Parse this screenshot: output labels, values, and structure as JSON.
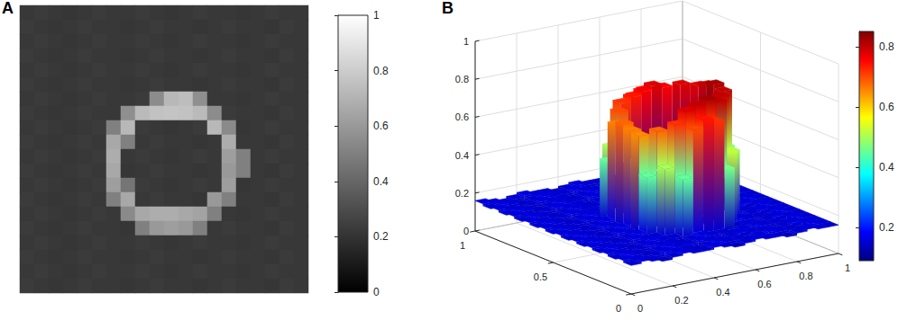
{
  "chart_data": [
    {
      "type": "heatmap",
      "title": "A",
      "tick_labels": false,
      "colorbar": {
        "range": [
          0,
          1
        ],
        "ticks": [
          0,
          0.2,
          0.4,
          0.6,
          0.8,
          1
        ]
      },
      "cells": [
        [
          0.22,
          0.23,
          0.22,
          0.21,
          0.22,
          0.23,
          0.22,
          0.22,
          0.23,
          0.22,
          0.21,
          0.22,
          0.23,
          0.22,
          0.22,
          0.21,
          0.22,
          0.23,
          0.22,
          0.22
        ],
        [
          0.23,
          0.22,
          0.21,
          0.22,
          0.23,
          0.22,
          0.22,
          0.21,
          0.22,
          0.23,
          0.22,
          0.22,
          0.21,
          0.22,
          0.23,
          0.22,
          0.22,
          0.21,
          0.23,
          0.22
        ],
        [
          0.22,
          0.23,
          0.22,
          0.21,
          0.22,
          0.23,
          0.22,
          0.22,
          0.23,
          0.22,
          0.21,
          0.22,
          0.23,
          0.22,
          0.22,
          0.21,
          0.22,
          0.23,
          0.22,
          0.22
        ],
        [
          0.23,
          0.22,
          0.21,
          0.22,
          0.23,
          0.22,
          0.22,
          0.21,
          0.22,
          0.23,
          0.22,
          0.22,
          0.21,
          0.22,
          0.23,
          0.22,
          0.22,
          0.21,
          0.23,
          0.22
        ],
        [
          0.22,
          0.23,
          0.22,
          0.21,
          0.22,
          0.23,
          0.22,
          0.22,
          0.23,
          0.22,
          0.21,
          0.22,
          0.23,
          0.22,
          0.22,
          0.21,
          0.22,
          0.23,
          0.22,
          0.22
        ],
        [
          0.23,
          0.22,
          0.21,
          0.22,
          0.23,
          0.22,
          0.22,
          0.21,
          0.22,
          0.23,
          0.22,
          0.22,
          0.21,
          0.22,
          0.23,
          0.22,
          0.22,
          0.21,
          0.23,
          0.22
        ],
        [
          0.22,
          0.23,
          0.22,
          0.21,
          0.22,
          0.23,
          0.22,
          0.22,
          0.23,
          0.55,
          0.72,
          0.74,
          0.56,
          0.22,
          0.22,
          0.21,
          0.22,
          0.23,
          0.22,
          0.22
        ],
        [
          0.23,
          0.22,
          0.21,
          0.22,
          0.23,
          0.22,
          0.22,
          0.56,
          0.73,
          0.76,
          0.77,
          0.76,
          0.73,
          0.55,
          0.23,
          0.22,
          0.22,
          0.21,
          0.23,
          0.22
        ],
        [
          0.22,
          0.23,
          0.22,
          0.21,
          0.22,
          0.23,
          0.5,
          0.72,
          0.23,
          0.22,
          0.21,
          0.22,
          0.23,
          0.72,
          0.54,
          0.21,
          0.22,
          0.23,
          0.22,
          0.22
        ],
        [
          0.23,
          0.22,
          0.21,
          0.22,
          0.23,
          0.22,
          0.66,
          0.5,
          0.22,
          0.23,
          0.22,
          0.22,
          0.21,
          0.22,
          0.68,
          0.22,
          0.22,
          0.21,
          0.23,
          0.22
        ],
        [
          0.22,
          0.23,
          0.22,
          0.21,
          0.22,
          0.23,
          0.68,
          0.22,
          0.23,
          0.22,
          0.21,
          0.22,
          0.23,
          0.22,
          0.62,
          0.5,
          0.22,
          0.23,
          0.22,
          0.22
        ],
        [
          0.23,
          0.22,
          0.21,
          0.22,
          0.23,
          0.22,
          0.66,
          0.21,
          0.22,
          0.23,
          0.22,
          0.22,
          0.21,
          0.22,
          0.6,
          0.5,
          0.22,
          0.21,
          0.23,
          0.22
        ],
        [
          0.22,
          0.23,
          0.22,
          0.21,
          0.22,
          0.23,
          0.62,
          0.46,
          0.23,
          0.22,
          0.21,
          0.22,
          0.23,
          0.22,
          0.62,
          0.21,
          0.22,
          0.23,
          0.22,
          0.22
        ],
        [
          0.23,
          0.22,
          0.21,
          0.22,
          0.23,
          0.22,
          0.5,
          0.66,
          0.22,
          0.23,
          0.22,
          0.22,
          0.21,
          0.6,
          0.5,
          0.22,
          0.22,
          0.21,
          0.23,
          0.22
        ],
        [
          0.22,
          0.23,
          0.22,
          0.21,
          0.22,
          0.23,
          0.22,
          0.54,
          0.66,
          0.68,
          0.68,
          0.66,
          0.64,
          0.5,
          0.22,
          0.21,
          0.22,
          0.23,
          0.22,
          0.22
        ],
        [
          0.23,
          0.22,
          0.21,
          0.22,
          0.23,
          0.22,
          0.22,
          0.21,
          0.5,
          0.6,
          0.62,
          0.6,
          0.5,
          0.22,
          0.23,
          0.22,
          0.22,
          0.21,
          0.23,
          0.22
        ],
        [
          0.22,
          0.23,
          0.22,
          0.21,
          0.22,
          0.23,
          0.22,
          0.22,
          0.23,
          0.22,
          0.21,
          0.22,
          0.23,
          0.22,
          0.22,
          0.21,
          0.22,
          0.23,
          0.22,
          0.22
        ],
        [
          0.23,
          0.22,
          0.21,
          0.22,
          0.23,
          0.22,
          0.22,
          0.21,
          0.22,
          0.23,
          0.22,
          0.22,
          0.21,
          0.22,
          0.23,
          0.22,
          0.22,
          0.21,
          0.23,
          0.22
        ],
        [
          0.22,
          0.23,
          0.22,
          0.21,
          0.22,
          0.23,
          0.22,
          0.22,
          0.23,
          0.22,
          0.21,
          0.22,
          0.23,
          0.22,
          0.22,
          0.21,
          0.22,
          0.23,
          0.22,
          0.22
        ],
        [
          0.23,
          0.22,
          0.21,
          0.22,
          0.23,
          0.22,
          0.22,
          0.21,
          0.22,
          0.23,
          0.22,
          0.22,
          0.21,
          0.22,
          0.23,
          0.22,
          0.22,
          0.21,
          0.23,
          0.22
        ]
      ]
    },
    {
      "type": "surface",
      "title": "B",
      "grid": true,
      "xlim": [
        0,
        1
      ],
      "xticks": [
        0,
        0.2,
        0.4,
        0.6,
        0.8,
        1
      ],
      "ylim": [
        0,
        1
      ],
      "yticks": [
        0,
        0.5,
        1
      ],
      "zlim": [
        0,
        1
      ],
      "zticks": [
        0,
        0.2,
        0.4,
        0.6,
        0.8,
        1
      ],
      "colorbar": {
        "range": [
          0.09,
          0.85
        ],
        "ticks": [
          0.2,
          0.4,
          0.6,
          0.8
        ]
      },
      "z": [
        [
          0.15,
          0.16,
          0.15,
          0.14,
          0.15,
          0.16,
          0.15,
          0.15,
          0.16,
          0.15,
          0.14,
          0.15,
          0.16,
          0.15,
          0.15,
          0.14,
          0.15,
          0.16,
          0.15,
          0.15
        ],
        [
          0.16,
          0.15,
          0.14,
          0.15,
          0.16,
          0.15,
          0.15,
          0.14,
          0.15,
          0.16,
          0.15,
          0.15,
          0.14,
          0.15,
          0.16,
          0.15,
          0.15,
          0.14,
          0.16,
          0.15
        ],
        [
          0.15,
          0.16,
          0.15,
          0.14,
          0.15,
          0.16,
          0.15,
          0.15,
          0.16,
          0.15,
          0.14,
          0.15,
          0.16,
          0.15,
          0.15,
          0.14,
          0.15,
          0.16,
          0.15,
          0.15
        ],
        [
          0.16,
          0.15,
          0.14,
          0.15,
          0.16,
          0.15,
          0.15,
          0.14,
          0.15,
          0.16,
          0.15,
          0.15,
          0.14,
          0.15,
          0.16,
          0.15,
          0.15,
          0.14,
          0.16,
          0.15
        ],
        [
          0.15,
          0.16,
          0.15,
          0.14,
          0.15,
          0.16,
          0.15,
          0.15,
          0.45,
          0.7,
          0.74,
          0.72,
          0.46,
          0.15,
          0.15,
          0.14,
          0.15,
          0.16,
          0.15,
          0.15
        ],
        [
          0.16,
          0.15,
          0.14,
          0.15,
          0.16,
          0.15,
          0.15,
          0.5,
          0.72,
          0.78,
          0.8,
          0.82,
          0.8,
          0.52,
          0.16,
          0.15,
          0.15,
          0.14,
          0.16,
          0.15
        ],
        [
          0.15,
          0.16,
          0.15,
          0.14,
          0.15,
          0.16,
          0.45,
          0.68,
          0.16,
          0.15,
          0.14,
          0.15,
          0.16,
          0.8,
          0.5,
          0.14,
          0.15,
          0.16,
          0.15,
          0.15
        ],
        [
          0.16,
          0.15,
          0.14,
          0.15,
          0.16,
          0.15,
          0.65,
          0.45,
          0.15,
          0.16,
          0.15,
          0.15,
          0.14,
          0.15,
          0.8,
          0.15,
          0.15,
          0.14,
          0.16,
          0.15
        ],
        [
          0.15,
          0.16,
          0.15,
          0.14,
          0.15,
          0.16,
          0.66,
          0.15,
          0.16,
          0.15,
          0.14,
          0.15,
          0.16,
          0.15,
          0.82,
          0.48,
          0.15,
          0.16,
          0.15,
          0.15
        ],
        [
          0.16,
          0.15,
          0.14,
          0.15,
          0.16,
          0.15,
          0.68,
          0.14,
          0.15,
          0.16,
          0.15,
          0.15,
          0.14,
          0.15,
          0.8,
          0.45,
          0.15,
          0.14,
          0.16,
          0.15
        ],
        [
          0.15,
          0.16,
          0.15,
          0.14,
          0.15,
          0.16,
          0.66,
          0.45,
          0.16,
          0.15,
          0.14,
          0.15,
          0.16,
          0.15,
          0.78,
          0.14,
          0.15,
          0.16,
          0.15,
          0.15
        ],
        [
          0.16,
          0.15,
          0.14,
          0.15,
          0.16,
          0.15,
          0.45,
          0.7,
          0.15,
          0.16,
          0.15,
          0.15,
          0.14,
          0.78,
          0.5,
          0.15,
          0.15,
          0.14,
          0.16,
          0.15
        ],
        [
          0.15,
          0.16,
          0.15,
          0.14,
          0.15,
          0.16,
          0.15,
          0.5,
          0.72,
          0.74,
          0.76,
          0.78,
          0.76,
          0.55,
          0.15,
          0.14,
          0.15,
          0.16,
          0.15,
          0.15
        ],
        [
          0.16,
          0.15,
          0.14,
          0.15,
          0.16,
          0.15,
          0.15,
          0.14,
          0.15,
          0.5,
          0.72,
          0.74,
          0.52,
          0.15,
          0.16,
          0.15,
          0.15,
          0.14,
          0.16,
          0.15
        ],
        [
          0.15,
          0.16,
          0.15,
          0.14,
          0.15,
          0.16,
          0.15,
          0.15,
          0.16,
          0.15,
          0.14,
          0.15,
          0.16,
          0.15,
          0.15,
          0.14,
          0.15,
          0.16,
          0.15,
          0.15
        ],
        [
          0.16,
          0.15,
          0.14,
          0.15,
          0.16,
          0.15,
          0.15,
          0.14,
          0.15,
          0.16,
          0.15,
          0.15,
          0.14,
          0.15,
          0.16,
          0.15,
          0.15,
          0.14,
          0.16,
          0.15
        ],
        [
          0.15,
          0.16,
          0.15,
          0.14,
          0.15,
          0.16,
          0.15,
          0.15,
          0.16,
          0.15,
          0.14,
          0.15,
          0.16,
          0.15,
          0.15,
          0.14,
          0.15,
          0.16,
          0.15,
          0.15
        ],
        [
          0.16,
          0.15,
          0.14,
          0.15,
          0.16,
          0.15,
          0.15,
          0.14,
          0.15,
          0.16,
          0.15,
          0.15,
          0.14,
          0.15,
          0.16,
          0.15,
          0.15,
          0.14,
          0.16,
          0.15
        ],
        [
          0.15,
          0.16,
          0.15,
          0.14,
          0.15,
          0.16,
          0.15,
          0.15,
          0.16,
          0.15,
          0.14,
          0.15,
          0.16,
          0.15,
          0.15,
          0.14,
          0.15,
          0.16,
          0.15,
          0.15
        ],
        [
          0.16,
          0.15,
          0.14,
          0.15,
          0.16,
          0.15,
          0.15,
          0.14,
          0.15,
          0.16,
          0.15,
          0.15,
          0.14,
          0.15,
          0.16,
          0.15,
          0.15,
          0.14,
          0.16,
          0.15
        ]
      ]
    }
  ]
}
